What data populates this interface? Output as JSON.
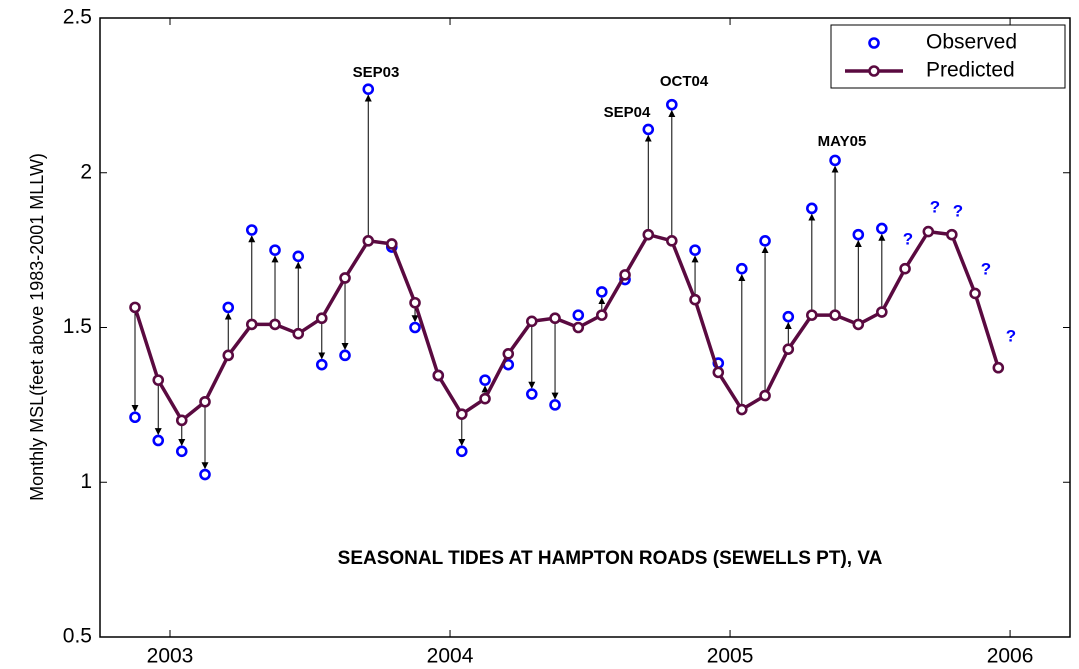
{
  "chart_data": {
    "type": "line",
    "title": "SEASONAL TIDES AT HAMPTON ROADS (SEWELLS PT), VA",
    "y_label": "Monthly MSL(feet above 1983-2001 MLLW)",
    "x": [
      2002.875,
      2002.958,
      2003.042,
      2003.125,
      2003.208,
      2003.292,
      2003.375,
      2003.458,
      2003.542,
      2003.625,
      2003.708,
      2003.792,
      2003.875,
      2003.958,
      2004.042,
      2004.125,
      2004.208,
      2004.292,
      2004.375,
      2004.458,
      2004.542,
      2004.625,
      2004.708,
      2004.792,
      2004.875,
      2004.958,
      2005.042,
      2005.125,
      2005.208,
      2005.292,
      2005.375,
      2005.458,
      2005.542,
      2005.625,
      2005.708,
      2005.792,
      2005.875,
      2005.958
    ],
    "series": [
      {
        "name": "Observed",
        "color": "#0000ff",
        "line": false,
        "values": [
          1.21,
          1.135,
          1.1,
          1.025,
          1.565,
          1.815,
          1.75,
          1.73,
          1.38,
          1.41,
          2.27,
          1.76,
          1.5,
          1.345,
          1.1,
          1.33,
          1.38,
          1.285,
          1.25,
          1.54,
          1.615,
          1.655,
          2.14,
          2.22,
          1.75,
          1.385,
          1.69,
          1.78,
          1.535,
          1.885,
          2.04,
          1.8,
          1.82,
          null,
          null,
          null,
          null,
          null
        ]
      },
      {
        "name": "Predicted",
        "color": "#5a0a40",
        "line": true,
        "values": [
          1.565,
          1.33,
          1.2,
          1.26,
          1.41,
          1.51,
          1.51,
          1.48,
          1.53,
          1.66,
          1.78,
          1.77,
          1.58,
          1.345,
          1.22,
          1.27,
          1.415,
          1.52,
          1.53,
          1.5,
          1.54,
          1.67,
          1.8,
          1.78,
          1.59,
          1.355,
          1.235,
          1.28,
          1.43,
          1.54,
          1.54,
          1.51,
          1.55,
          1.69,
          1.81,
          1.8,
          1.61,
          1.37
        ]
      }
    ],
    "annotations": [
      "SEP03",
      "SEP04",
      "OCT04",
      "MAY05",
      "?",
      "?",
      "?",
      "?",
      "?"
    ],
    "xlim": [
      2002.75,
      2006.214
    ],
    "xticks": [
      2003,
      2004,
      2005,
      2006
    ],
    "ylim": [
      0.5,
      2.5
    ],
    "yticks": [
      0.5,
      1,
      1.5,
      2,
      2.5
    ],
    "legend": "top-right",
    "arrows": true
  }
}
